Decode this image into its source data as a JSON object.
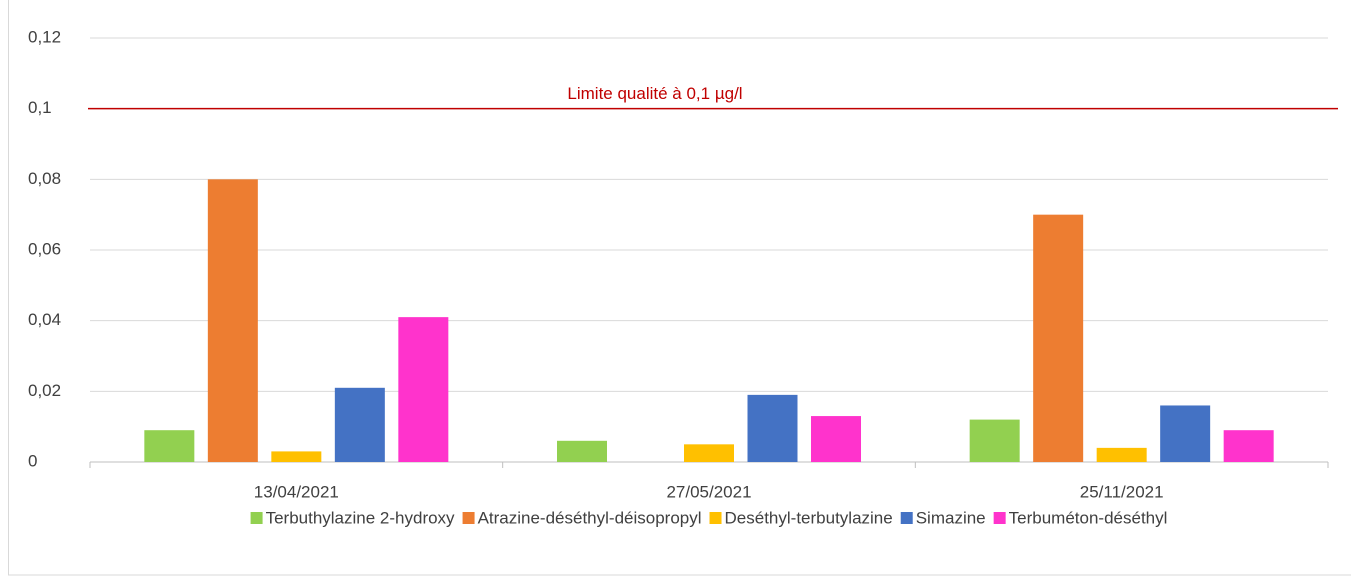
{
  "chart_data": {
    "type": "bar",
    "categories": [
      "13/04/2021",
      "27/05/2021",
      "25/11/2021"
    ],
    "series": [
      {
        "name": "Terbuthylazine 2-hydroxy",
        "color": "#92d050",
        "values": [
          0.009,
          0.006,
          0.012
        ]
      },
      {
        "name": "Atrazine-déséthyl-déisopropyl",
        "color": "#ed7d31",
        "values": [
          0.08,
          null,
          0.07
        ]
      },
      {
        "name": "Deséthyl-terbutylazine",
        "color": "#ffc000",
        "values": [
          0.003,
          0.005,
          0.004
        ]
      },
      {
        "name": "Simazine",
        "color": "#4472c4",
        "values": [
          0.021,
          0.019,
          0.016
        ]
      },
      {
        "name": "Terbuméton-déséthyl",
        "color": "#ff33cc",
        "values": [
          0.041,
          0.013,
          0.009
        ]
      }
    ],
    "ylim": [
      0,
      0.12
    ],
    "yticks": [
      0,
      {
        "value": 0.02,
        "label": "0,02"
      },
      {
        "value": 0.04,
        "label": "0,04"
      },
      {
        "value": 0.06,
        "label": "0,06"
      },
      {
        "value": 0.08,
        "label": "0,08"
      },
      {
        "value": 0.1,
        "label": "0,1"
      },
      {
        "value": 0.12,
        "label": "0,12"
      }
    ],
    "grid": true,
    "legend": "bottom",
    "annotations": [
      {
        "text": "Limite qualité à 0,1 µg/l",
        "value": 0.1,
        "color": "#c00000"
      }
    ]
  }
}
